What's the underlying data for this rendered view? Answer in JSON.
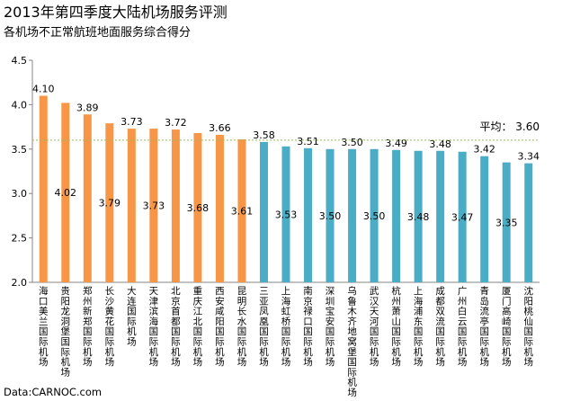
{
  "chart_data": {
    "type": "bar",
    "title": "2013年第四季度大陆机场服务评测",
    "subtitle": "各机场不正常航班地面服务综合得分",
    "categories": [
      "海口美兰国际机场",
      "贵阳龙洞堡国际机场",
      "郑州新郑国际机场",
      "长沙黄花国际机场",
      "大连国际机场",
      "天津滨海国际机场",
      "北京首都国际机场",
      "重庆江北国际机场",
      "西安咸阳国际机场",
      "昆明长水国际机场",
      "三亚凤凰国际机场",
      "上海虹桥国际机场",
      "南京禄口国际机场",
      "深圳宝安国际机场",
      "乌鲁木齐地窝堡国际机场",
      "武汉天河国际机场",
      "杭州萧山国际机场",
      "上海浦东国际机场",
      "成都双流国际机场",
      "广州白云国际机场",
      "青岛流亭国际机场",
      "厦门高崎国际机场",
      "沈阳桃仙国际机场"
    ],
    "values": [
      4.1,
      4.02,
      3.89,
      3.79,
      3.73,
      3.73,
      3.72,
      3.68,
      3.66,
      3.61,
      3.58,
      3.53,
      3.51,
      3.5,
      3.5,
      3.5,
      3.49,
      3.48,
      3.48,
      3.47,
      3.42,
      3.35,
      3.34
    ],
    "value_labels": [
      "4.10",
      "4.02",
      "3.89",
      "3.79",
      "3.73",
      "3.73",
      "3.72",
      "3.68",
      "3.66",
      "3.61",
      "3.58",
      "3.53",
      "3.51",
      "3.50",
      "3.50",
      "3.50",
      "3.49",
      "3.48",
      "3.48",
      "3.47",
      "3.42",
      "3.35",
      "3.34"
    ],
    "label_positions": [
      "top",
      "inside",
      "top",
      "inside",
      "top",
      "inside",
      "top",
      "inside",
      "top",
      "inside",
      "top",
      "inside",
      "top",
      "inside",
      "top",
      "inside",
      "top",
      "inside",
      "top",
      "inside",
      "top",
      "inside",
      "top"
    ],
    "bar_colors": [
      "orange",
      "orange",
      "orange",
      "orange",
      "orange",
      "orange",
      "orange",
      "orange",
      "orange",
      "orange",
      "teal",
      "teal",
      "teal",
      "teal",
      "teal",
      "teal",
      "teal",
      "teal",
      "teal",
      "teal",
      "teal",
      "teal",
      "teal"
    ],
    "colors": {
      "orange": "#F79646",
      "teal": "#4BACC6",
      "average_line": "#9BBB59"
    },
    "ylim": [
      2.0,
      4.5
    ],
    "yticks": [
      2.0,
      2.5,
      3.0,
      3.5,
      4.0,
      4.5
    ],
    "ytick_labels": [
      "2.0",
      "2.5",
      "3.0",
      "3.5",
      "4.0",
      "4.5"
    ],
    "average": {
      "value": 3.6,
      "label": "平均： 3.60"
    },
    "grid": false
  },
  "source": "Data:CARNOC.com"
}
